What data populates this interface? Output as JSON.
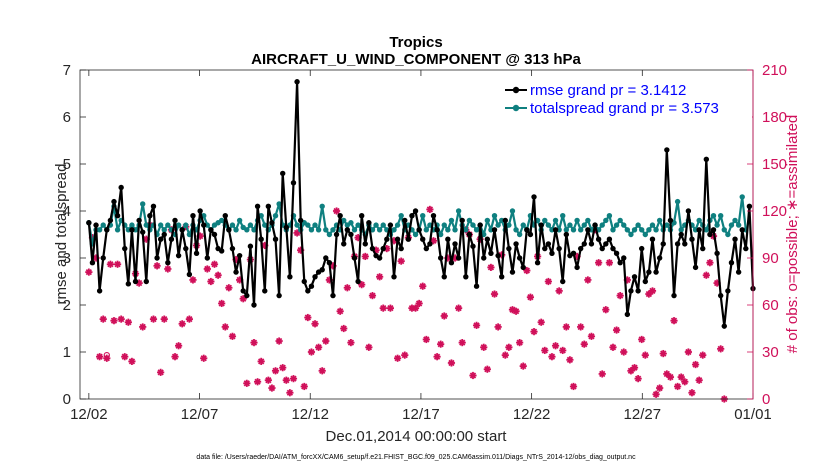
{
  "chart_data": {
    "type": "line",
    "title": "Tropics",
    "subtitle": "AIRCRAFT_U_WIND_COMPONENT @ 313 hPa",
    "xlabel": "Dec.01,2014 00:00:00 start",
    "ylabel_left": "rmse and totalspread",
    "ylabel_right": "# of obs: o=possible; ∗=assimilated",
    "x_ticks": [
      "12/02",
      "12/07",
      "12/12",
      "12/17",
      "12/22",
      "12/27",
      "01/01"
    ],
    "y_left_ticks": [
      "0",
      "1",
      "2",
      "3",
      "4",
      "5",
      "6",
      "7"
    ],
    "y_right_ticks": [
      "0",
      "30",
      "60",
      "90",
      "120",
      "150",
      "180",
      "210"
    ],
    "ylim_left": [
      0,
      7
    ],
    "ylim_right": [
      0,
      210
    ],
    "xlim_days": [
      0.6,
      31.0
    ],
    "footnote": "data file: /Users/raeder/DAI/ATM_forcXX/CAM6_setup/f.e21.FHIST_BGC.f09_025.CAM6assim.011/Diags_NTrS_2014-12/obs_diag_output.nc",
    "legend": [
      {
        "label": "rmse grand pr = 3.1412",
        "color": "#000000"
      },
      {
        "label": "totalspread grand pr = 3.573",
        "color": "#0f8080"
      }
    ],
    "series": [
      {
        "name": "rmse",
        "color": "#000000",
        "values": [
          3.75,
          2.9,
          3.7,
          2.3,
          3.0,
          3.6,
          3.8,
          4.2,
          3.9,
          4.5,
          3.2,
          2.45,
          3.6,
          2.5,
          3.8,
          3.55,
          2.5,
          3.9,
          4.1,
          3.0,
          3.4,
          3.5,
          2.9,
          3.4,
          3.8,
          3.05,
          3.6,
          3.2,
          2.65,
          3.9,
          3.1,
          4.0,
          3.7,
          3.0,
          3.6,
          3.5,
          3.2,
          3.15,
          3.9,
          3.6,
          3.2,
          2.7,
          3.05,
          2.3,
          2.2,
          3.25,
          2.0,
          4.1,
          3.4,
          2.3,
          4.1,
          3.75,
          3.4,
          2.2,
          4.8,
          3.65,
          2.6,
          4.6,
          6.75,
          3.8,
          2.5,
          2.3,
          2.4,
          2.6,
          2.7,
          2.75,
          3.0,
          2.9,
          2.2,
          3.5,
          3.9,
          3.3,
          3.6,
          3.5,
          3.0,
          2.5,
          3.9,
          3.3,
          3.75,
          3.2,
          3.05,
          3.0,
          3.2,
          3.4,
          3.7,
          2.6,
          3.4,
          3.2,
          3.8,
          3.4,
          3.9,
          4.0,
          3.6,
          3.4,
          3.2,
          3.3,
          3.9,
          3.6,
          3.0,
          2.6,
          3.4,
          2.9,
          3.3,
          3.0,
          3.8,
          2.6,
          3.5,
          3.25,
          2.4,
          3.7,
          3.0,
          3.4,
          3.1,
          3.6,
          3.05,
          2.6,
          3.8,
          3.2,
          2.7,
          3.3,
          3.0,
          2.8,
          3.6,
          3.5,
          4.3,
          2.9,
          3.7,
          3.2,
          3.3,
          3.1,
          3.6,
          3.2,
          2.5,
          3.5,
          3.05,
          3.1,
          2.8,
          3.2,
          3.3,
          3.6,
          3.3,
          3.7,
          3.4,
          3.2,
          3.3,
          3.4,
          3.2,
          3.1,
          2.9,
          3.0,
          1.8,
          2.3,
          2.6,
          2.3,
          3.2,
          2.5,
          2.7,
          3.4,
          2.7,
          3.0,
          3.3,
          5.3,
          3.8,
          2.2,
          3.3,
          3.5,
          3.3,
          4.0,
          3.4,
          2.8,
          3.6,
          3.2,
          5.1,
          3.5,
          3.6,
          3.1,
          2.2,
          1.55,
          2.3,
          2.9,
          3.4,
          2.7,
          3.6,
          3.2,
          4.1,
          2.35
        ]
      },
      {
        "name": "totalspread",
        "color": "#0f8080",
        "values": [
          3.75,
          3.3,
          3.6,
          3.6,
          3.7,
          3.6,
          3.7,
          4.1,
          3.6,
          3.8,
          3.7,
          3.6,
          3.7,
          3.6,
          3.7,
          4.15,
          3.7,
          3.6,
          3.7,
          3.5,
          3.7,
          3.6,
          3.7,
          3.6,
          3.5,
          3.7,
          3.6,
          3.7,
          3.5,
          3.7,
          3.6,
          3.8,
          3.9,
          3.7,
          3.6,
          3.7,
          3.75,
          3.8,
          3.7,
          3.6,
          3.7,
          3.6,
          3.8,
          3.65,
          3.6,
          3.7,
          3.6,
          3.8,
          3.9,
          3.7,
          3.6,
          3.7,
          3.9,
          4.15,
          3.7,
          3.6,
          3.7,
          3.9,
          3.7,
          3.6,
          3.75,
          3.7,
          3.6,
          3.7,
          3.6,
          4.1,
          3.6,
          3.5,
          3.6,
          3.7,
          3.6,
          3.8,
          3.7,
          3.75,
          3.6,
          3.7,
          3.6,
          3.5,
          3.7,
          3.6,
          3.7,
          3.6,
          3.7,
          3.6,
          3.5,
          3.6,
          3.7,
          3.9,
          3.6,
          3.7,
          3.6,
          3.5,
          3.6,
          3.9,
          3.6,
          3.7,
          3.6,
          3.7,
          3.5,
          3.7,
          3.6,
          3.8,
          3.6,
          4.0,
          3.7,
          3.6,
          3.8,
          3.7,
          3.6,
          3.7,
          3.5,
          3.8,
          3.6,
          3.9,
          3.7,
          3.8,
          3.6,
          3.7,
          4.0,
          3.6,
          3.5,
          3.7,
          3.6,
          3.9,
          3.7,
          3.8,
          3.6,
          3.8,
          3.7,
          3.6,
          3.8,
          3.6,
          3.9,
          3.6,
          3.7,
          3.6,
          3.8,
          3.6,
          3.7,
          3.8,
          3.6,
          3.7,
          3.6,
          3.7,
          3.8,
          3.9,
          3.6,
          3.7,
          3.8,
          3.7,
          3.6,
          3.5,
          3.6,
          3.7,
          3.6,
          3.5,
          3.6,
          3.7,
          3.6,
          3.8,
          3.6,
          3.7,
          3.6,
          3.75,
          4.2,
          3.6,
          3.7,
          3.8,
          3.7,
          3.6,
          3.8,
          3.7,
          3.6,
          3.8,
          3.9,
          3.7,
          3.9,
          3.6,
          3.5,
          3.7,
          3.8,
          3.7,
          4.3,
          3.6
        ]
      },
      {
        "name": "# of obs assimilated",
        "color": "#d0105a",
        "axis": "right",
        "values": [
          81,
          103,
          90,
          27,
          51,
          26,
          86,
          50,
          86,
          51,
          27,
          49,
          24,
          80,
          74,
          46,
          102,
          111,
          51,
          85,
          17,
          51,
          83,
          108,
          27,
          34,
          48,
          110,
          51,
          76,
          98,
          104,
          26,
          83,
          75,
          86,
          79,
          61,
          46,
          71,
          40,
          89,
          76,
          64,
          10,
          89,
          36,
          11,
          24,
          98,
          12,
          7,
          18,
          37,
          20,
          12,
          4,
          13,
          106,
          95,
          8,
          52,
          30,
          48,
          33,
          18,
          37,
          76,
          85,
          120,
          56,
          45,
          71,
          36,
          91,
          103,
          73,
          91,
          33,
          66,
          95,
          78,
          58,
          96,
          58,
          101,
          26,
          88,
          28,
          103,
          58,
          58,
          61,
          72,
          38,
          121,
          101,
          27,
          35,
          53,
          90,
          23,
          90,
          58,
          36,
          108,
          105,
          15,
          47,
          102,
          33,
          19,
          84,
          67,
          46,
          92,
          28,
          33,
          57,
          56,
          36,
          21,
          82,
          65,
          43,
          91,
          49,
          31,
          75,
          27,
          34,
          69,
          31,
          46,
          25,
          8,
          91,
          46,
          35,
          76,
          40,
          108,
          87,
          16,
          57,
          87,
          33,
          44,
          66,
          30,
          76,
          18,
          20,
          13,
          38,
          28,
          67,
          69,
          3,
          7,
          29,
          16,
          14,
          50,
          8,
          14,
          11,
          30,
          4,
          22,
          12,
          28,
          79,
          87,
          104,
          74,
          32,
          0
        ]
      },
      {
        "name": "# of obs possible",
        "color": "#d0105a",
        "axis": "right",
        "values": [
          81,
          103,
          90,
          27,
          51,
          28,
          86,
          50,
          86,
          51,
          27,
          49,
          24,
          80,
          74,
          46,
          102,
          111,
          51,
          85,
          17,
          51,
          83,
          108,
          27,
          34,
          48,
          110,
          51,
          76,
          98,
          104,
          26,
          83,
          75,
          86,
          79,
          61,
          46,
          71,
          40,
          89,
          76,
          64,
          10,
          89,
          36,
          11,
          24,
          98,
          12,
          7,
          18,
          37,
          20,
          12,
          4,
          13,
          106,
          95,
          8,
          52,
          30,
          48,
          33,
          18,
          37,
          76,
          85,
          120,
          56,
          45,
          71,
          36,
          91,
          103,
          73,
          91,
          33,
          66,
          95,
          78,
          58,
          96,
          58,
          101,
          26,
          88,
          28,
          103,
          58,
          58,
          61,
          72,
          38,
          121,
          101,
          27,
          35,
          53,
          90,
          23,
          90,
          58,
          36,
          108,
          105,
          15,
          47,
          102,
          33,
          19,
          84,
          67,
          46,
          92,
          28,
          33,
          57,
          56,
          36,
          21,
          82,
          65,
          43,
          91,
          49,
          31,
          75,
          27,
          34,
          69,
          31,
          46,
          25,
          8,
          91,
          46,
          35,
          76,
          40,
          108,
          87,
          16,
          57,
          87,
          33,
          44,
          66,
          30,
          76,
          18,
          20,
          13,
          38,
          28,
          67,
          69,
          3,
          7,
          29,
          16,
          14,
          50,
          8,
          14,
          11,
          30,
          4,
          22,
          12,
          28,
          79,
          87,
          104,
          74,
          32,
          0
        ]
      }
    ]
  }
}
